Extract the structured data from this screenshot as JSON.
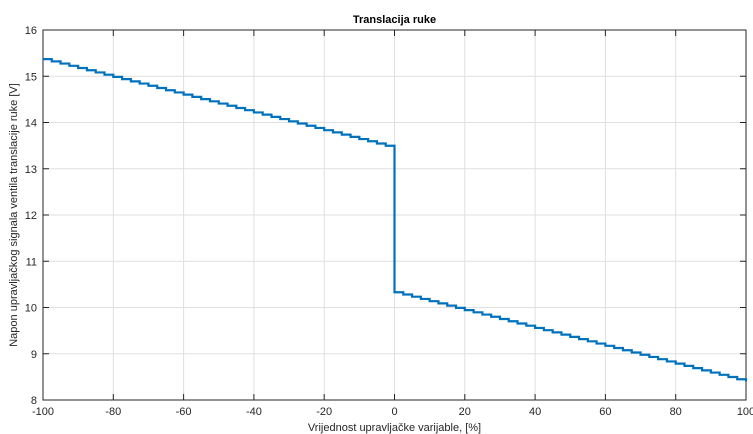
{
  "chart_data": {
    "type": "line",
    "title": "Translacija ruke",
    "xlabel": "Vrijednost upravljačke varijable, [%]",
    "ylabel": "Napon upravljačkog signala ventila translacije ruke [V]",
    "xlim": [
      -100,
      100
    ],
    "ylim": [
      8,
      16
    ],
    "xticks": [
      -100,
      -80,
      -60,
      -40,
      -20,
      0,
      20,
      40,
      60,
      80,
      100
    ],
    "yticks": [
      8,
      9,
      10,
      11,
      12,
      13,
      14,
      15,
      16
    ],
    "grid": true,
    "series": [
      {
        "color": "#0072BD",
        "x": [
          -100,
          0,
          0,
          100
        ],
        "y": [
          15.37,
          13.45,
          10.33,
          8.4
        ]
      }
    ],
    "step_percent": 2.5
  },
  "colors": {
    "line": "#0072BD",
    "grid": "#dfdfdf",
    "axis": "#262626"
  }
}
